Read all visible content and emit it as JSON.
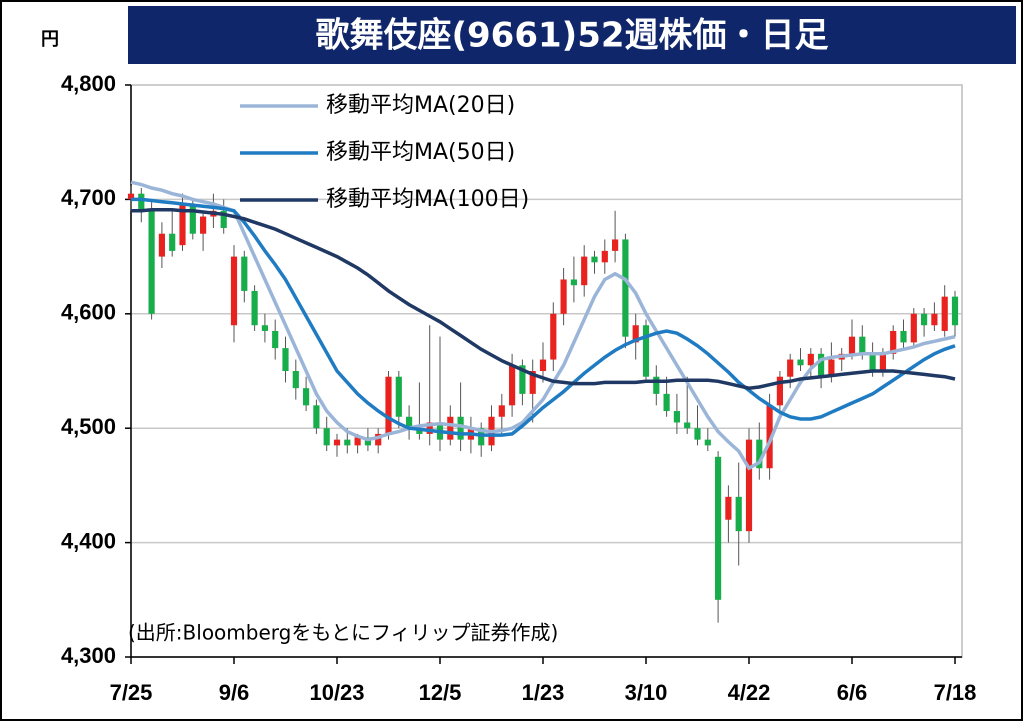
{
  "chart_data": {
    "type": "candlestick",
    "title": "歌舞伎座(9661)52週株価・日足",
    "unit": "円",
    "source": "(出所:Bloombergをもとにフィリップ証券作成)",
    "up_color": "#e8231f",
    "down_color": "#17ad4b",
    "grid": true,
    "ylim": [
      4300,
      4800
    ],
    "yticks": [
      {
        "value": 4300,
        "label": "4,300"
      },
      {
        "value": 4400,
        "label": "4,400"
      },
      {
        "value": 4500,
        "label": "4,500"
      },
      {
        "value": 4600,
        "label": "4,600"
      },
      {
        "value": 4700,
        "label": "4,700"
      },
      {
        "value": 4800,
        "label": "4,800"
      }
    ],
    "xlim": [
      0,
      80
    ],
    "xticks": [
      {
        "value": 0,
        "label": "7/25"
      },
      {
        "value": 10,
        "label": "9/6"
      },
      {
        "value": 20,
        "label": "10/23"
      },
      {
        "value": 30,
        "label": "12/5"
      },
      {
        "value": 40,
        "label": "1/23"
      },
      {
        "value": 50,
        "label": "3/10"
      },
      {
        "value": 60,
        "label": "4/22"
      },
      {
        "value": 70,
        "label": "6/6"
      },
      {
        "value": 80,
        "label": "7/18"
      }
    ],
    "candles": {
      "open": [
        4700,
        4705,
        4690,
        4650,
        4670,
        4660,
        4695,
        4670,
        4685,
        4690,
        4590,
        4650,
        4620,
        4590,
        4585,
        4570,
        4550,
        4535,
        4520,
        4500,
        4485,
        4490,
        4485,
        4492,
        4485,
        4495,
        4545,
        4510,
        4500,
        4495,
        4505,
        4490,
        4510,
        4490,
        4500,
        4485,
        4510,
        4520,
        4555,
        4530,
        4550,
        4560,
        4600,
        4630,
        4625,
        4650,
        4645,
        4655,
        4665,
        4575,
        4590,
        4545,
        4530,
        4515,
        4505,
        4500,
        4490,
        4475,
        4420,
        4440,
        4410,
        4490,
        4465,
        4520,
        4545,
        4560,
        4555,
        4565,
        4545,
        4560,
        4565,
        4580,
        4565,
        4550,
        4565,
        4585,
        4575,
        4600,
        4590,
        4585,
        4615
      ],
      "high": [
        4712,
        4710,
        4700,
        4680,
        4690,
        4705,
        4700,
        4690,
        4705,
        4700,
        4660,
        4655,
        4625,
        4600,
        4595,
        4580,
        4560,
        4545,
        4525,
        4510,
        4495,
        4500,
        4495,
        4500,
        4500,
        4550,
        4550,
        4520,
        4540,
        4590,
        4580,
        4520,
        4540,
        4510,
        4505,
        4520,
        4530,
        4565,
        4560,
        4560,
        4575,
        4610,
        4640,
        4650,
        4660,
        4655,
        4665,
        4690,
        4670,
        4600,
        4595,
        4555,
        4545,
        4530,
        4545,
        4520,
        4500,
        4480,
        4450,
        4470,
        4500,
        4505,
        4530,
        4550,
        4565,
        4570,
        4570,
        4570,
        4575,
        4570,
        4595,
        4590,
        4575,
        4570,
        4590,
        4595,
        4605,
        4605,
        4610,
        4625,
        4620
      ],
      "low": [
        4690,
        4680,
        4595,
        4640,
        4650,
        4655,
        4665,
        4655,
        4675,
        4670,
        4575,
        4610,
        4585,
        4575,
        4560,
        4540,
        4525,
        4515,
        4495,
        4480,
        4475,
        4478,
        4478,
        4480,
        4478,
        4490,
        4500,
        4490,
        4490,
        4485,
        4480,
        4485,
        4480,
        4478,
        4475,
        4480,
        4495,
        4510,
        4520,
        4505,
        4540,
        4550,
        4590,
        4610,
        4615,
        4635,
        4635,
        4645,
        4570,
        4560,
        4540,
        4520,
        4510,
        4495,
        4495,
        4485,
        4480,
        4330,
        4400,
        4380,
        4400,
        4455,
        4455,
        4515,
        4535,
        4550,
        4545,
        4535,
        4540,
        4550,
        4560,
        4560,
        4545,
        4545,
        4560,
        4570,
        4570,
        4580,
        4585,
        4580,
        4580
      ],
      "close": [
        4705,
        4690,
        4600,
        4670,
        4655,
        4695,
        4670,
        4685,
        4690,
        4675,
        4650,
        4620,
        4590,
        4585,
        4570,
        4550,
        4535,
        4520,
        4500,
        4485,
        4490,
        4485,
        4492,
        4485,
        4495,
        4545,
        4510,
        4500,
        4495,
        4505,
        4490,
        4510,
        4490,
        4500,
        4485,
        4510,
        4520,
        4555,
        4530,
        4550,
        4560,
        4600,
        4630,
        4625,
        4650,
        4645,
        4655,
        4665,
        4580,
        4590,
        4545,
        4530,
        4515,
        4505,
        4500,
        4490,
        4485,
        4350,
        4440,
        4410,
        4490,
        4465,
        4520,
        4545,
        4560,
        4555,
        4565,
        4545,
        4560,
        4565,
        4580,
        4565,
        4550,
        4565,
        4585,
        4575,
        4600,
        4590,
        4600,
        4615,
        4590
      ]
    },
    "series": [
      {
        "name": "移動平均MA(20日)",
        "color": "#9bb5d8",
        "values": [
          4715,
          4713,
          4710,
          4708,
          4705,
          4703,
          4700,
          4698,
          4696,
          4693,
          4690,
          4670,
          4650,
          4630,
          4610,
          4590,
          4570,
          4550,
          4530,
          4515,
          4505,
          4497,
          4493,
          4490,
          4492,
          4495,
          4497,
          4500,
          4502,
          4503,
          4504,
          4503,
          4502,
          4500,
          4498,
          4497,
          4498,
          4500,
          4505,
          4515,
          4525,
          4540,
          4555,
          4575,
          4595,
          4615,
          4630,
          4635,
          4630,
          4618,
          4600,
          4585,
          4570,
          4555,
          4540,
          4525,
          4510,
          4497,
          4488,
          4480,
          4465,
          4470,
          4488,
          4510,
          4525,
          4540,
          4552,
          4560,
          4562,
          4563,
          4564,
          4565,
          4565,
          4565,
          4567,
          4569,
          4571,
          4574,
          4576,
          4578,
          4580
        ]
      },
      {
        "name": "移動平均MA(50日)",
        "color": "#1f7bc2",
        "values": [
          4700,
          4700,
          4699,
          4698,
          4697,
          4696,
          4695,
          4694,
          4693,
          4692,
          4690,
          4680,
          4668,
          4655,
          4643,
          4630,
          4614,
          4598,
          4582,
          4566,
          4550,
          4540,
          4530,
          4522,
          4515,
          4509,
          4504,
          4500,
          4499,
          4498,
          4497,
          4496,
          4495,
          4495,
          4494,
          4494,
          4494,
          4495,
          4502,
          4510,
          4518,
          4525,
          4532,
          4540,
          4548,
          4555,
          4562,
          4568,
          4573,
          4577,
          4580,
          4583,
          4585,
          4583,
          4578,
          4572,
          4565,
          4557,
          4549,
          4540,
          4533,
          4526,
          4520,
          4514,
          4510,
          4508,
          4508,
          4510,
          4514,
          4518,
          4522,
          4526,
          4530,
          4536,
          4542,
          4548,
          4554,
          4560,
          4565,
          4569,
          4572
        ]
      },
      {
        "name": "移動平均MA(100日)",
        "color": "#1f3864",
        "values": [
          4690,
          4690,
          4691,
          4691,
          4691,
          4690,
          4690,
          4689,
          4688,
          4687,
          4685,
          4683,
          4680,
          4677,
          4674,
          4670,
          4666,
          4662,
          4658,
          4654,
          4650,
          4645,
          4640,
          4634,
          4627,
          4620,
          4614,
          4608,
          4603,
          4598,
          4593,
          4587,
          4581,
          4575,
          4569,
          4564,
          4559,
          4555,
          4551,
          4547,
          4544,
          4541,
          4540,
          4539,
          4539,
          4539,
          4540,
          4540,
          4540,
          4540,
          4541,
          4541,
          4541,
          4542,
          4542,
          4542,
          4542,
          4541,
          4539,
          4537,
          4535,
          4536,
          4538,
          4540,
          4541,
          4543,
          4544,
          4545,
          4546,
          4547,
          4548,
          4549,
          4550,
          4550,
          4550,
          4549,
          4548,
          4547,
          4546,
          4545,
          4543
        ]
      }
    ]
  }
}
